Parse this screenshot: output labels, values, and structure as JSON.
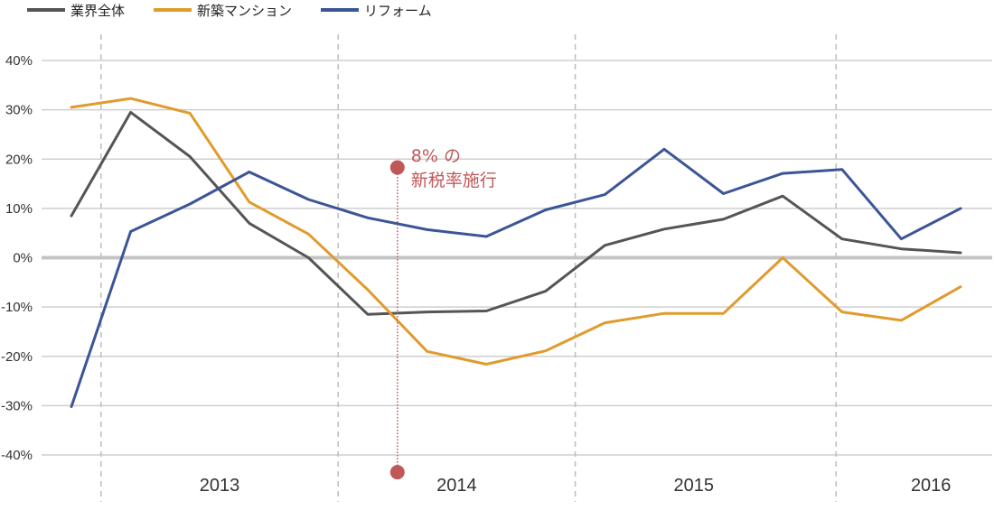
{
  "chart_data": {
    "type": "line",
    "legend": {
      "placement": "top-left"
    },
    "ylim": [
      -40,
      40
    ],
    "y_ticks": [
      "40%",
      "30%",
      "20%",
      "10%",
      "0%",
      "-10%",
      "-20%",
      "-30%",
      "-40%"
    ],
    "y_tick_values": [
      40,
      30,
      20,
      10,
      0,
      -10,
      -20,
      -30,
      -40
    ],
    "year_labels": [
      {
        "label": "2013",
        "center": 2.5
      },
      {
        "label": "2014",
        "center": 6.5
      },
      {
        "label": "2015",
        "center": 10.5
      },
      {
        "label": "2016",
        "center": 14.5
      }
    ],
    "year_boundaries": [
      0.5,
      4.5,
      8.5,
      12.9
    ],
    "x_count": 16,
    "grid": true,
    "series": [
      {
        "name": "業界全体",
        "color": "#555555",
        "values": [
          8.5,
          29.5,
          20.5,
          7,
          0,
          -11.5,
          -11,
          -10.8,
          -6.8,
          2.5,
          5.8,
          7.8,
          12.5,
          3.8,
          1.8,
          1.0
        ]
      },
      {
        "name": "新築マンション",
        "color": "#e09b2d",
        "values": [
          30.5,
          32.3,
          29.3,
          11.3,
          4.8,
          -6.5,
          -19,
          -21.6,
          -18.9,
          -13.2,
          -11.3,
          -11.3,
          0,
          -11,
          -12.7,
          -5.9
        ]
      },
      {
        "name": "リフォーム",
        "color": "#3b5597",
        "values": [
          -30.2,
          5.3,
          10.9,
          17.4,
          11.8,
          8.1,
          5.7,
          4.3,
          9.7,
          12.8,
          22.0,
          13.0,
          17.1,
          17.9,
          3.8,
          10.0
        ]
      }
    ],
    "annotation": {
      "line1": "8% の",
      "line2": "新税率施行",
      "x": 5.5,
      "y_top": 18.3,
      "y_bottom": -43.5,
      "color": "#c0585a"
    }
  }
}
